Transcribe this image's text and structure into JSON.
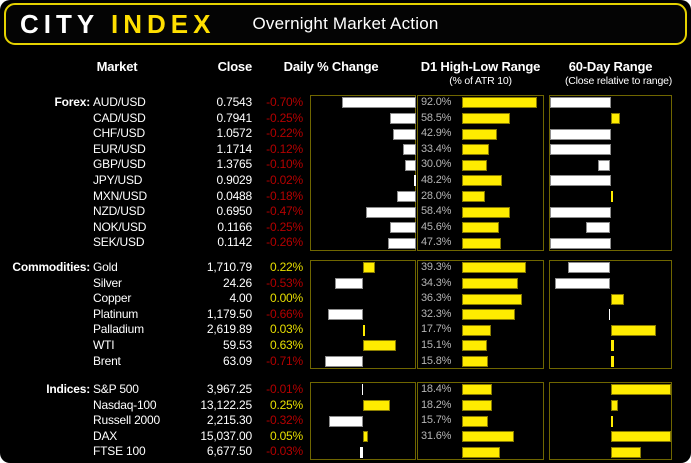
{
  "header": {
    "logo_city": "CITY",
    "logo_index": "INDEX",
    "title": "Overnight Market Action"
  },
  "columns": {
    "market": "Market",
    "close": "Close",
    "daily": "Daily % Change",
    "d1": "D1 High-Low Range",
    "d1_sub": "(% of ATR 10)",
    "range60": "60-Day Range",
    "range60_sub": "(Close relative to range)"
  },
  "colors": {
    "background": "#000000",
    "header_border": "#e5d200",
    "logo_yellow": "#ffdf00",
    "box_border": "#6f6600",
    "negative_red": "#b40000",
    "positive_yellow": "#e8df00",
    "bar_yellow": "#ffec00",
    "bar_yellow_border": "#8a7d00",
    "bar_white": "#ffffff",
    "bar_white_border": "#8c8c8c",
    "d1_label_gray": "#b5b5b5",
    "text_white": "#ffffff"
  },
  "sections": [
    {
      "label": "Forex:",
      "daily_range": [
        -1,
        0
      ],
      "d1_range": [
        0,
        100
      ],
      "r60_range": [
        -50,
        50
      ],
      "rows": [
        {
          "market": "AUD/USD",
          "close": "0.7543",
          "daily": -0.7,
          "daily_label": "-0.70%",
          "d1": 92.0,
          "d1_label": "92.0%",
          "r60": -50
        },
        {
          "market": "CAD/USD",
          "close": "0.7941",
          "daily": -0.25,
          "daily_label": "-0.25%",
          "d1": 58.5,
          "d1_label": "58.5%",
          "r60": 8
        },
        {
          "market": "CHF/USD",
          "close": "1.0572",
          "daily": -0.22,
          "daily_label": "-0.22%",
          "d1": 42.9,
          "d1_label": "42.9%",
          "r60": -50
        },
        {
          "market": "EUR/USD",
          "close": "1.1714",
          "daily": -0.12,
          "daily_label": "-0.12%",
          "d1": 33.4,
          "d1_label": "33.4%",
          "r60": -50
        },
        {
          "market": "GBP/USD",
          "close": "1.3765",
          "daily": -0.1,
          "daily_label": "-0.10%",
          "d1": 30.0,
          "d1_label": "30.0%",
          "r60": -10
        },
        {
          "market": "JPY/USD",
          "close": "0.9029",
          "daily": -0.02,
          "daily_label": "-0.02%",
          "d1": 48.2,
          "d1_label": "48.2%",
          "r60": -50
        },
        {
          "market": "MXN/USD",
          "close": "0.0488",
          "daily": -0.18,
          "daily_label": "-0.18%",
          "d1": 28.0,
          "d1_label": "28.0%",
          "r60": 2
        },
        {
          "market": "NZD/USD",
          "close": "0.6950",
          "daily": -0.47,
          "daily_label": "-0.47%",
          "d1": 58.4,
          "d1_label": "58.4%",
          "r60": -50
        },
        {
          "market": "NOK/USD",
          "close": "0.1166",
          "daily": -0.25,
          "daily_label": "-0.25%",
          "d1": 45.6,
          "d1_label": "45.6%",
          "r60": -20
        },
        {
          "market": "SEK/USD",
          "close": "0.1142",
          "daily": -0.26,
          "daily_label": "-0.26%",
          "d1": 47.3,
          "d1_label": "47.3%",
          "r60": -50
        }
      ]
    },
    {
      "label": "Commodities:",
      "daily_range": [
        -1,
        1
      ],
      "d1_range": [
        0,
        50
      ],
      "r60_range": [
        -50,
        50
      ],
      "rows": [
        {
          "market": "Gold",
          "close": "1,710.79",
          "daily": 0.22,
          "daily_label": "0.22%",
          "d1": 39.3,
          "d1_label": "39.3%",
          "r60": -35
        },
        {
          "market": "Silver",
          "close": "24.26",
          "daily": -0.53,
          "daily_label": "-0.53%",
          "d1": 34.3,
          "d1_label": "34.3%",
          "r60": -46
        },
        {
          "market": "Copper",
          "close": "4.00",
          "daily": 0.0,
          "daily_label": "0.00%",
          "d1": 36.3,
          "d1_label": "36.3%",
          "r60": 11
        },
        {
          "market": "Platinum",
          "close": "1,179.50",
          "daily": -0.66,
          "daily_label": "-0.66%",
          "d1": 32.3,
          "d1_label": "32.3%",
          "r60": -1
        },
        {
          "market": "Palladium",
          "close": "2,619.89",
          "daily": 0.03,
          "daily_label": "0.03%",
          "d1": 17.7,
          "d1_label": "17.7%",
          "r60": 38
        },
        {
          "market": "WTI",
          "close": "59.53",
          "daily": 0.63,
          "daily_label": "0.63%",
          "d1": 15.1,
          "d1_label": "15.1%",
          "r60": 3
        },
        {
          "market": "Brent",
          "close": "63.09",
          "daily": -0.71,
          "daily_label": "-0.71%",
          "d1": 15.8,
          "d1_label": "15.8%",
          "r60": 3
        }
      ]
    },
    {
      "label": "Indices:",
      "daily_range": [
        -0.5,
        0.5
      ],
      "d1_range": [
        0,
        50
      ],
      "r60_range": [
        -50,
        50
      ],
      "rows": [
        {
          "market": "S&P 500",
          "close": "3,967.25",
          "daily": -0.01,
          "daily_label": "-0.01%",
          "d1": 18.4,
          "d1_label": "18.4%",
          "r60": 50
        },
        {
          "market": "Nasdaq-100",
          "close": "13,122.25",
          "daily": 0.25,
          "daily_label": "0.25%",
          "d1": 18.2,
          "d1_label": "18.2%",
          "r60": 6
        },
        {
          "market": "Russell 2000",
          "close": "2,215.30",
          "daily": -0.32,
          "daily_label": "-0.32%",
          "d1": 15.7,
          "d1_label": "15.7%",
          "r60": 2
        },
        {
          "market": "DAX",
          "close": "15,037.00",
          "daily": 0.05,
          "daily_label": "0.05%",
          "d1": 31.6,
          "d1_label": "31.6%",
          "r60": 50
        },
        {
          "market": "FTSE 100",
          "close": "6,677.50",
          "daily": -0.03,
          "daily_label": "-0.03%",
          "d1": 23.0,
          "d1_label": "",
          "r60": 25
        }
      ]
    }
  ],
  "chart_data": [
    {
      "type": "bar",
      "title": "Daily % Change",
      "orientation": "horizontal",
      "categories": [
        "AUD/USD",
        "CAD/USD",
        "CHF/USD",
        "EUR/USD",
        "GBP/USD",
        "JPY/USD",
        "MXN/USD",
        "NZD/USD",
        "NOK/USD",
        "SEK/USD",
        "Gold",
        "Silver",
        "Copper",
        "Platinum",
        "Palladium",
        "WTI",
        "Brent",
        "S&P 500",
        "Nasdaq-100",
        "Russell 2000",
        "DAX",
        "FTSE 100"
      ],
      "values": [
        -0.7,
        -0.25,
        -0.22,
        -0.12,
        -0.1,
        -0.02,
        -0.18,
        -0.47,
        -0.25,
        -0.26,
        0.22,
        -0.53,
        0.0,
        -0.66,
        0.03,
        0.63,
        -0.71,
        -0.01,
        0.25,
        -0.32,
        0.05,
        -0.03
      ],
      "xlim_by_section": {
        "Forex": [
          -1,
          0
        ],
        "Commodities": [
          -1,
          1
        ],
        "Indices": [
          -0.5,
          0.5
        ]
      },
      "note": "negative bars white, positive bars yellow; grid off"
    },
    {
      "type": "bar",
      "title": "D1 High-Low Range (% of ATR 10)",
      "orientation": "horizontal",
      "categories": [
        "AUD/USD",
        "CAD/USD",
        "CHF/USD",
        "EUR/USD",
        "GBP/USD",
        "JPY/USD",
        "MXN/USD",
        "NZD/USD",
        "NOK/USD",
        "SEK/USD",
        "Gold",
        "Silver",
        "Copper",
        "Platinum",
        "Palladium",
        "WTI",
        "Brent",
        "S&P 500",
        "Nasdaq-100",
        "Russell 2000",
        "DAX",
        "FTSE 100"
      ],
      "values": [
        92.0,
        58.5,
        42.9,
        33.4,
        30.0,
        48.2,
        28.0,
        58.4,
        45.6,
        47.3,
        39.3,
        34.3,
        36.3,
        32.3,
        17.7,
        15.1,
        15.8,
        18.4,
        18.2,
        15.7,
        31.6,
        23.0
      ],
      "xlim_by_section": {
        "Forex": [
          0,
          100
        ],
        "Commodities": [
          0,
          50
        ],
        "Indices": [
          0,
          50
        ]
      },
      "note": "yellow bars with value labels at left; FTSE 100 bar shown without a printed label (value estimated from bar length)"
    },
    {
      "type": "bar",
      "title": "60-Day Range (Close relative to range)",
      "orientation": "horizontal",
      "categories": [
        "AUD/USD",
        "CAD/USD",
        "CHF/USD",
        "EUR/USD",
        "GBP/USD",
        "JPY/USD",
        "MXN/USD",
        "NZD/USD",
        "NOK/USD",
        "SEK/USD",
        "Gold",
        "Silver",
        "Copper",
        "Platinum",
        "Palladium",
        "WTI",
        "Brent",
        "S&P 500",
        "Nasdaq-100",
        "Russell 2000",
        "DAX",
        "FTSE 100"
      ],
      "values": [
        -50,
        8,
        -50,
        -50,
        -10,
        -50,
        2,
        -50,
        -20,
        -50,
        -35,
        -46,
        11,
        -1,
        38,
        3,
        3,
        50,
        6,
        2,
        50,
        25
      ],
      "xlim": [
        -50,
        50
      ],
      "note": "no numeric labels shown; values estimated from bar lengths, axis pivot at center, white=below midpoint, yellow=above midpoint"
    }
  ]
}
